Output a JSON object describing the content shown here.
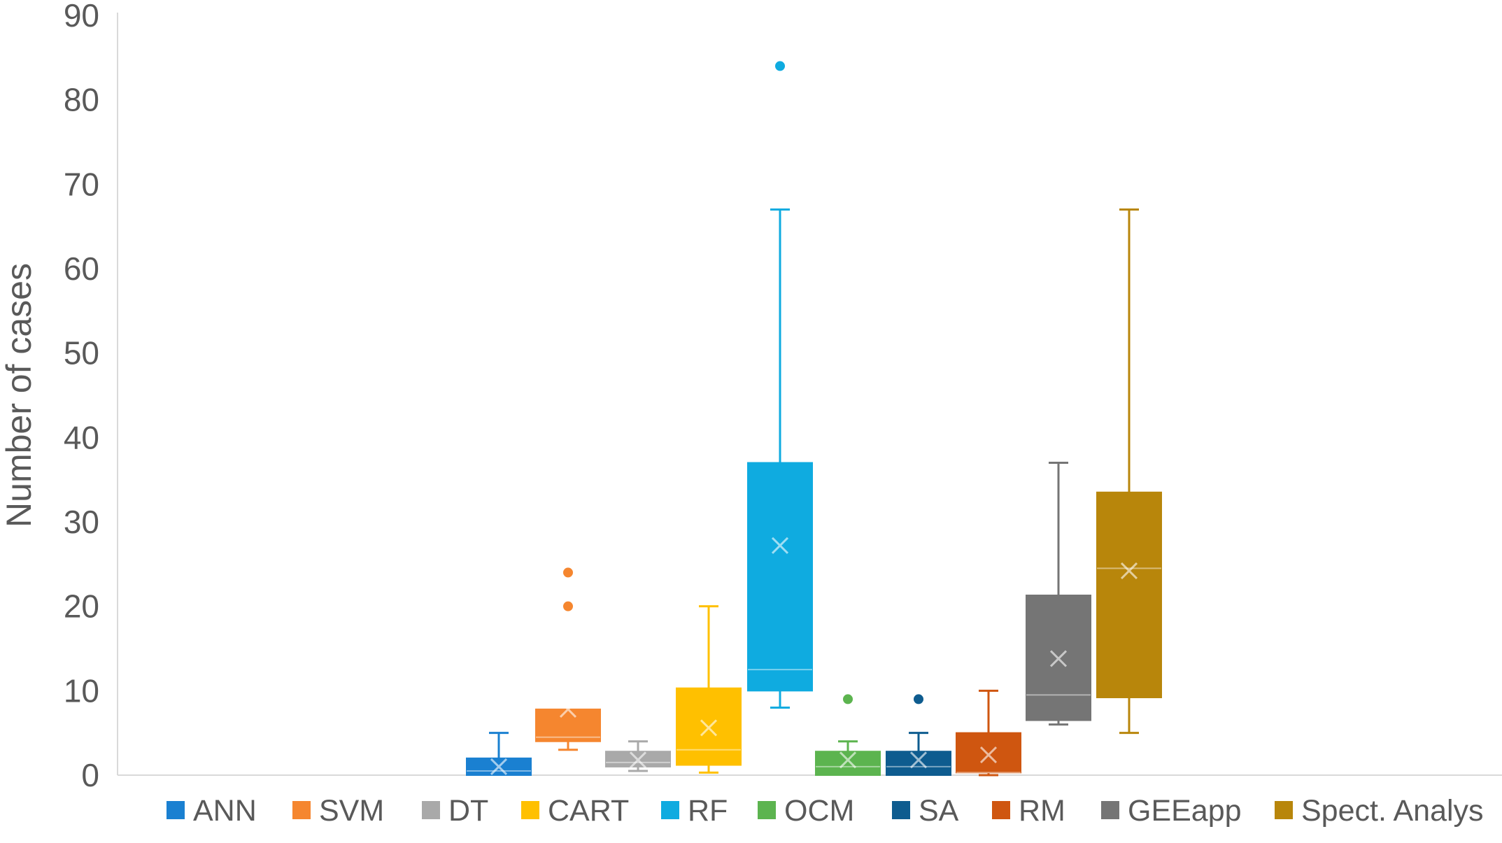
{
  "chart_data": {
    "type": "box",
    "ylabel": "Number of cases",
    "ylim": [
      0,
      90
    ],
    "yticks": [
      0,
      10,
      20,
      30,
      40,
      50,
      60,
      70,
      80,
      90
    ],
    "grid": false,
    "legend_position": "bottom",
    "series": [
      {
        "name": "ANN",
        "color": "#1a80d1",
        "min": 0,
        "q1": 0,
        "median": 0.5,
        "q3": 2,
        "max": 5,
        "mean": 1,
        "outliers": []
      },
      {
        "name": "SVM",
        "color": "#f5862f",
        "min": 3,
        "q1": 4,
        "median": 4.5,
        "q3": 7.8,
        "max": 7.8,
        "mean": 7.8,
        "outliers": [
          20,
          24
        ]
      },
      {
        "name": "DT",
        "color": "#a9a9a9",
        "min": 0.5,
        "q1": 1,
        "median": 1.5,
        "q3": 2.8,
        "max": 4,
        "mean": 1.8,
        "outliers": []
      },
      {
        "name": "CART",
        "color": "#ffc000",
        "min": 0.3,
        "q1": 1.2,
        "median": 3,
        "q3": 10.3,
        "max": 20,
        "mean": 5.6,
        "outliers": []
      },
      {
        "name": "RF",
        "color": "#0fabe0",
        "min": 8,
        "q1": 10,
        "median": 12.5,
        "q3": 37,
        "max": 67,
        "mean": 27.2,
        "outliers": [
          84
        ]
      },
      {
        "name": "OCM",
        "color": "#5cb44f",
        "min": 0,
        "q1": 0,
        "median": 1,
        "q3": 2.8,
        "max": 4,
        "mean": 1.8,
        "outliers": [
          9
        ]
      },
      {
        "name": "SA",
        "color": "#0e5c8f",
        "min": 0,
        "q1": 0,
        "median": 1,
        "q3": 2.8,
        "max": 5,
        "mean": 1.8,
        "outliers": [
          9
        ]
      },
      {
        "name": "RM",
        "color": "#cf5610",
        "min": 0,
        "q1": 0.3,
        "median": 0.3,
        "q3": 5,
        "max": 10,
        "mean": 2.4,
        "outliers": []
      },
      {
        "name": "GEEapp",
        "color": "#757575",
        "min": 6,
        "q1": 6.5,
        "median": 9.5,
        "q3": 21.3,
        "max": 37,
        "mean": 13.8,
        "outliers": []
      },
      {
        "name": "Spect. Analys",
        "color": "#b8860b",
        "min": 5,
        "q1": 9.2,
        "median": 24.5,
        "q3": 33.5,
        "max": 67,
        "mean": 24.2,
        "outliers": []
      }
    ]
  }
}
